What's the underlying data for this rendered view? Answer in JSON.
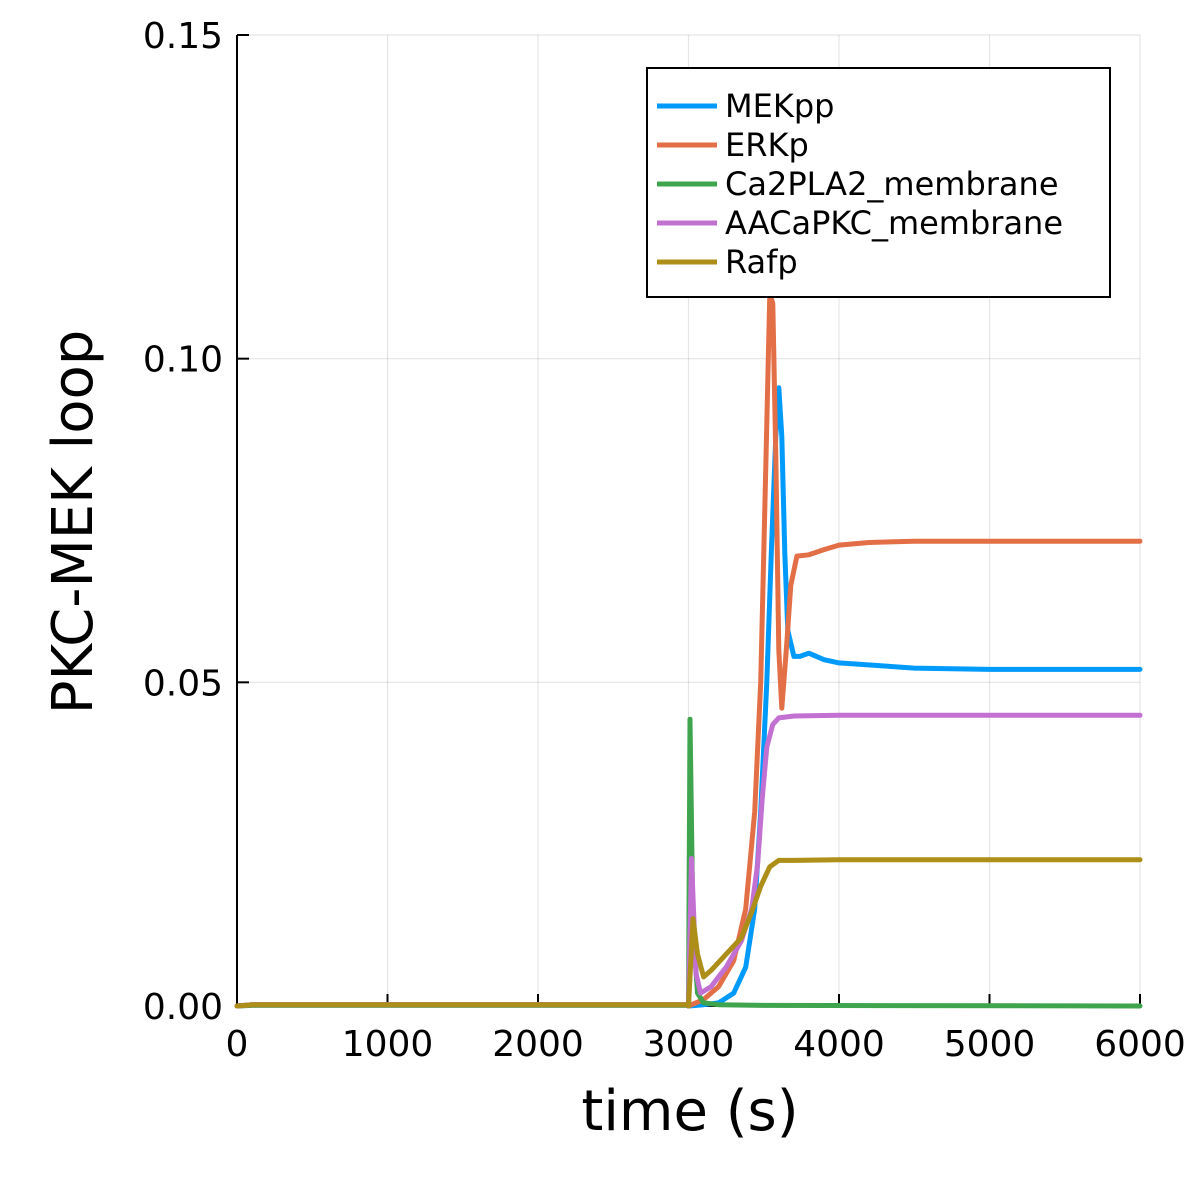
{
  "chart_data": {
    "type": "line",
    "title": "",
    "xlabel": "time (s)",
    "ylabel": "PKC-MEK loop",
    "xlim": [
      0,
      6000
    ],
    "ylim": [
      0,
      0.15
    ],
    "xticks": [
      0,
      1000,
      2000,
      3000,
      4000,
      5000,
      6000
    ],
    "xtick_labels": [
      "0",
      "1000",
      "2000",
      "3000",
      "4000",
      "5000",
      "6000"
    ],
    "yticks": [
      0,
      0.05,
      0.1,
      0.15
    ],
    "ytick_labels": [
      "0.00",
      "0.05",
      "0.10",
      "0.15"
    ],
    "grid": true,
    "legend_position": "top-right",
    "series": [
      {
        "name": "MEKpp",
        "color": "#009AFA",
        "points": [
          [
            0,
            0
          ],
          [
            100,
            0.0002
          ],
          [
            2990,
            0.0002
          ],
          [
            3000,
            0.0
          ],
          [
            3100,
            0.0002
          ],
          [
            3200,
            0.0005
          ],
          [
            3300,
            0.002
          ],
          [
            3380,
            0.006
          ],
          [
            3440,
            0.015
          ],
          [
            3480,
            0.03
          ],
          [
            3520,
            0.05
          ],
          [
            3550,
            0.07
          ],
          [
            3580,
            0.088
          ],
          [
            3600,
            0.0955
          ],
          [
            3620,
            0.088
          ],
          [
            3640,
            0.07
          ],
          [
            3660,
            0.058
          ],
          [
            3700,
            0.054
          ],
          [
            3740,
            0.054
          ],
          [
            3800,
            0.0545
          ],
          [
            3900,
            0.0535
          ],
          [
            4000,
            0.053
          ],
          [
            4500,
            0.0522
          ],
          [
            5000,
            0.052
          ],
          [
            6000,
            0.052
          ]
        ]
      },
      {
        "name": "ERKp",
        "color": "#E36F47",
        "points": [
          [
            0,
            0
          ],
          [
            100,
            0.0002
          ],
          [
            2990,
            0.0002
          ],
          [
            3000,
            0.0
          ],
          [
            3050,
            0.0005
          ],
          [
            3100,
            0.001
          ],
          [
            3200,
            0.003
          ],
          [
            3300,
            0.007
          ],
          [
            3380,
            0.015
          ],
          [
            3440,
            0.03
          ],
          [
            3480,
            0.05
          ],
          [
            3510,
            0.08
          ],
          [
            3540,
            0.11
          ],
          [
            3560,
            0.1085
          ],
          [
            3580,
            0.085
          ],
          [
            3600,
            0.055
          ],
          [
            3620,
            0.046
          ],
          [
            3650,
            0.055
          ],
          [
            3680,
            0.065
          ],
          [
            3720,
            0.0695
          ],
          [
            3800,
            0.0697
          ],
          [
            3900,
            0.0705
          ],
          [
            4000,
            0.0712
          ],
          [
            4200,
            0.0716
          ],
          [
            4500,
            0.0718
          ],
          [
            5000,
            0.0718
          ],
          [
            6000,
            0.0718
          ]
        ]
      },
      {
        "name": "Ca2PLA2_membrane",
        "color": "#3EA44E",
        "points": [
          [
            0,
            0
          ],
          [
            100,
            0.0001
          ],
          [
            2990,
            0.0001
          ],
          [
            3000,
            0.0
          ],
          [
            3010,
            0.0443
          ],
          [
            3030,
            0.012
          ],
          [
            3060,
            0.002
          ],
          [
            3100,
            0.0005
          ],
          [
            3200,
            0.0002
          ],
          [
            3500,
            0.0001
          ],
          [
            6000,
            0.0
          ]
        ]
      },
      {
        "name": "AACaPKC_membrane",
        "color": "#C271D2",
        "points": [
          [
            0,
            0
          ],
          [
            100,
            0.0002
          ],
          [
            2990,
            0.0002
          ],
          [
            3000,
            0.0
          ],
          [
            3020,
            0.0228
          ],
          [
            3050,
            0.005
          ],
          [
            3080,
            0.002
          ],
          [
            3150,
            0.003
          ],
          [
            3250,
            0.006
          ],
          [
            3350,
            0.01
          ],
          [
            3420,
            0.015
          ],
          [
            3460,
            0.022
          ],
          [
            3490,
            0.032
          ],
          [
            3520,
            0.04
          ],
          [
            3560,
            0.0435
          ],
          [
            3600,
            0.0445
          ],
          [
            3700,
            0.0448
          ],
          [
            4000,
            0.0449
          ],
          [
            6000,
            0.0449
          ]
        ]
      },
      {
        "name": "Rafp",
        "color": "#AC8E18",
        "points": [
          [
            0,
            0
          ],
          [
            100,
            0.0002
          ],
          [
            2990,
            0.0002
          ],
          [
            3000,
            0.0
          ],
          [
            3030,
            0.0135
          ],
          [
            3060,
            0.008
          ],
          [
            3100,
            0.0045
          ],
          [
            3150,
            0.0055
          ],
          [
            3250,
            0.008
          ],
          [
            3350,
            0.0105
          ],
          [
            3420,
            0.0145
          ],
          [
            3480,
            0.0185
          ],
          [
            3540,
            0.0215
          ],
          [
            3600,
            0.0225
          ],
          [
            3700,
            0.0225
          ],
          [
            4000,
            0.0226
          ],
          [
            6000,
            0.0226
          ]
        ]
      }
    ]
  }
}
